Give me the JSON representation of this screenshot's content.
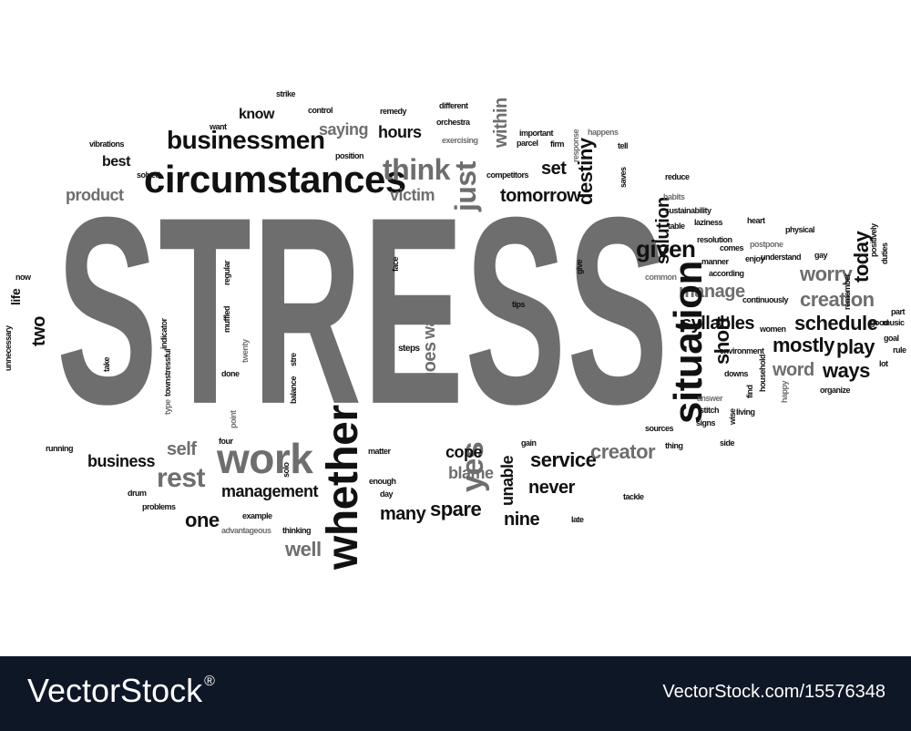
{
  "colors": {
    "dark": "#111111",
    "gray": "#6e6e6e",
    "light": "#9a9a9a",
    "footer_bg": "#0e1726"
  },
  "headline": "STRESS",
  "words": [
    "circumstances",
    "businessmen",
    "know",
    "saying",
    "hours",
    "think",
    "just",
    "within",
    "solution",
    "destiny",
    "set",
    "tomorrow",
    "victim",
    "given",
    "worry",
    "today",
    "creation",
    "manage",
    "schedule",
    "play",
    "mostly",
    "ways",
    "word",
    "syllables",
    "short",
    "situation",
    "whether",
    "yes",
    "goes",
    "way",
    "steps",
    "work",
    "rest",
    "self",
    "business",
    "one",
    "management",
    "well",
    "many",
    "spare",
    "unable",
    "cope",
    "blame",
    "never",
    "nine",
    "service",
    "creator",
    "two",
    "life",
    "product",
    "best",
    "vibrations",
    "solved",
    "control",
    "strike",
    "remedy",
    "different",
    "orchestra",
    "exercising",
    "important",
    "parcel",
    "firm",
    "response",
    "happens",
    "tell",
    "saves",
    "reduce",
    "habits",
    "sustainability",
    "table",
    "laziness",
    "resolution",
    "comes",
    "heart",
    "physical",
    "postpone",
    "enjoy",
    "understand",
    "gay",
    "positively",
    "duties",
    "according",
    "manner",
    "common",
    "continuously",
    "remember",
    "music",
    "part",
    "good",
    "goal",
    "rule",
    "lot",
    "women",
    "environment",
    "downs",
    "find",
    "household",
    "happy",
    "organize",
    "answer",
    "stitch",
    "signs",
    "wise",
    "living",
    "sources",
    "thing",
    "side",
    "tackle",
    "late",
    "gain",
    "drum",
    "running",
    "problems",
    "example",
    "advantageous",
    "thinking",
    "matter",
    "enough",
    "day",
    "solo",
    "balance",
    "stre",
    "type",
    "town",
    "stressful",
    "twenty",
    "point",
    "done",
    "four",
    "take",
    "muffled",
    "indicator",
    "regular",
    "face",
    "tips",
    "may",
    "give",
    "competitors",
    "position",
    "want",
    "unnecessary",
    "now"
  ],
  "footer": {
    "brand": "VectorStock",
    "trademark": "®",
    "image_id": "VectorStock.com/15576348"
  }
}
